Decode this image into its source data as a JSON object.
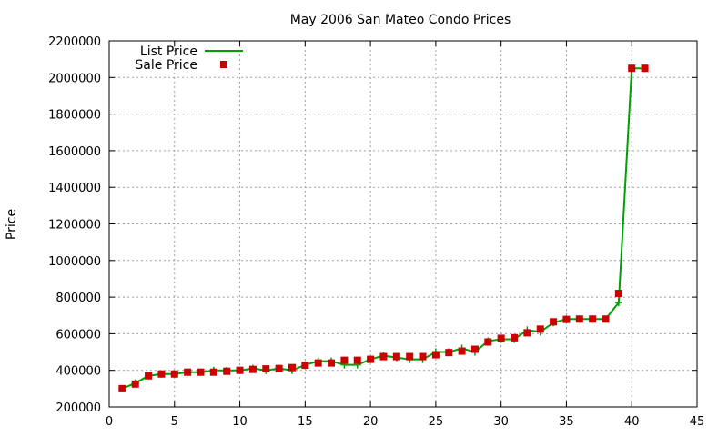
{
  "chart_data": {
    "type": "line",
    "title": "May 2006 San Mateo Condo Prices",
    "xlabel": "",
    "ylabel": "Price",
    "xlim": [
      0,
      45
    ],
    "ylim": [
      200000,
      2200000
    ],
    "xticks": [
      0,
      5,
      10,
      15,
      20,
      25,
      30,
      35,
      40,
      45
    ],
    "yticks": [
      200000,
      400000,
      600000,
      800000,
      1000000,
      1200000,
      1400000,
      1600000,
      1800000,
      2000000,
      2200000
    ],
    "grid": true,
    "legend_position": "top-left",
    "x": [
      1,
      2,
      3,
      4,
      5,
      6,
      7,
      8,
      9,
      10,
      11,
      12,
      13,
      14,
      15,
      16,
      17,
      18,
      19,
      20,
      21,
      22,
      23,
      24,
      25,
      26,
      27,
      28,
      29,
      30,
      31,
      32,
      33,
      34,
      35,
      36,
      37,
      38,
      39,
      40,
      41
    ],
    "series": [
      {
        "name": "List Price",
        "style": "linespoints",
        "color": "#00a000",
        "values": [
          300000,
          330000,
          370000,
          380000,
          380000,
          390000,
          390000,
          400000,
          400000,
          400000,
          410000,
          400000,
          410000,
          400000,
          430000,
          450000,
          450000,
          430000,
          430000,
          460000,
          480000,
          470000,
          460000,
          460000,
          500000,
          500000,
          520000,
          500000,
          560000,
          570000,
          570000,
          620000,
          610000,
          660000,
          680000,
          680000,
          680000,
          680000,
          770000,
          2050000,
          2050000
        ]
      },
      {
        "name": "Sale Price",
        "style": "points",
        "color": "#cc0000",
        "values": [
          300000,
          325000,
          370000,
          380000,
          380000,
          390000,
          390000,
          390000,
          395000,
          400000,
          405000,
          408000,
          410000,
          415000,
          428000,
          440000,
          440000,
          455000,
          455000,
          460000,
          475000,
          475000,
          475000,
          475000,
          485000,
          497000,
          505000,
          515000,
          555000,
          575000,
          578000,
          605000,
          625000,
          665000,
          678000,
          680000,
          680000,
          680000,
          820000,
          2050000,
          2050000
        ]
      }
    ]
  }
}
